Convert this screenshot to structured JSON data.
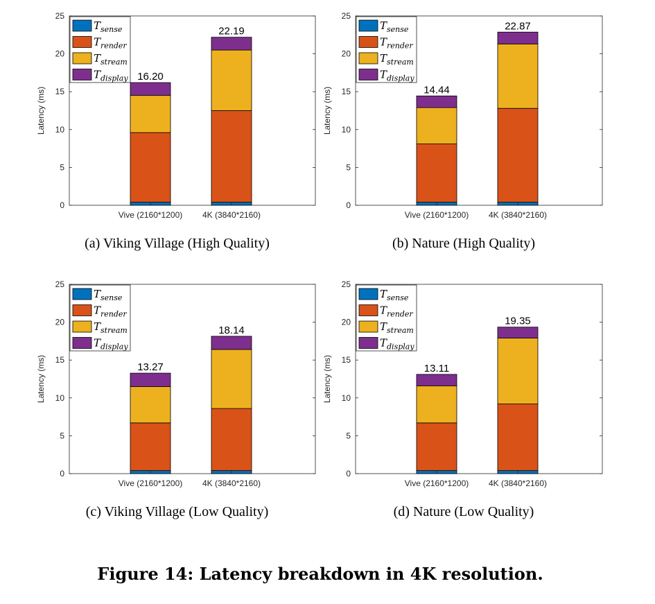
{
  "figure_caption": "Figure 14: Latency breakdown in 4K resolution.",
  "colors": {
    "sense": "#0072bd",
    "render": "#d95319",
    "stream": "#edb120",
    "display": "#7e2f8e"
  },
  "legend": [
    {
      "key": "sense",
      "base": "T",
      "sub": "sense"
    },
    {
      "key": "render",
      "base": "T",
      "sub": "render"
    },
    {
      "key": "stream",
      "base": "T",
      "sub": "stream"
    },
    {
      "key": "display",
      "base": "T",
      "sub": "display"
    }
  ],
  "chart_data": [
    {
      "type": "bar",
      "stacked": true,
      "caption": "(a) Viking Village (High Quality)",
      "ylabel": "Latency (ms)",
      "ylim": [
        0,
        25
      ],
      "yticks": [
        0,
        5,
        10,
        15,
        20,
        25
      ],
      "categories": [
        "Vive (2160*1200)",
        "4K (3840*2160)"
      ],
      "series": [
        {
          "key": "sense",
          "values": [
            0.4,
            0.4
          ]
        },
        {
          "key": "render",
          "values": [
            9.2,
            12.1
          ]
        },
        {
          "key": "stream",
          "values": [
            4.9,
            8.0
          ]
        },
        {
          "key": "display",
          "values": [
            1.7,
            1.69
          ]
        }
      ],
      "totals": [
        "16.20",
        "22.19"
      ],
      "legend_position": "top-left"
    },
    {
      "type": "bar",
      "stacked": true,
      "caption": "(b) Nature (High Quality)",
      "ylabel": "Latency (ms)",
      "ylim": [
        0,
        25
      ],
      "yticks": [
        0,
        5,
        10,
        15,
        20,
        25
      ],
      "categories": [
        "Vive (2160*1200)",
        "4K (3840*2160)"
      ],
      "series": [
        {
          "key": "sense",
          "values": [
            0.4,
            0.4
          ]
        },
        {
          "key": "render",
          "values": [
            7.7,
            12.4
          ]
        },
        {
          "key": "stream",
          "values": [
            4.8,
            8.5
          ]
        },
        {
          "key": "display",
          "values": [
            1.54,
            1.57
          ]
        }
      ],
      "totals": [
        "14.44",
        "22.87"
      ],
      "legend_position": "top-left"
    },
    {
      "type": "bar",
      "stacked": true,
      "caption": "(c) Viking Village (Low Quality)",
      "ylabel": "Latency (ms)",
      "ylim": [
        0,
        25
      ],
      "yticks": [
        0,
        5,
        10,
        15,
        20,
        25
      ],
      "categories": [
        "Vive (2160*1200)",
        "4K (3840*2160)"
      ],
      "series": [
        {
          "key": "sense",
          "values": [
            0.4,
            0.4
          ]
        },
        {
          "key": "render",
          "values": [
            6.3,
            8.2
          ]
        },
        {
          "key": "stream",
          "values": [
            4.8,
            7.8
          ]
        },
        {
          "key": "display",
          "values": [
            1.77,
            1.74
          ]
        }
      ],
      "totals": [
        "13.27",
        "18.14"
      ],
      "legend_position": "top-left"
    },
    {
      "type": "bar",
      "stacked": true,
      "caption": "(d) Nature (Low Quality)",
      "ylabel": "Latency (ms)",
      "ylim": [
        0,
        25
      ],
      "yticks": [
        0,
        5,
        10,
        15,
        20,
        25
      ],
      "categories": [
        "Vive (2160*1200)",
        "4K (3840*2160)"
      ],
      "series": [
        {
          "key": "sense",
          "values": [
            0.4,
            0.4
          ]
        },
        {
          "key": "render",
          "values": [
            6.3,
            8.8
          ]
        },
        {
          "key": "stream",
          "values": [
            4.9,
            8.7
          ]
        },
        {
          "key": "display",
          "values": [
            1.51,
            1.45
          ]
        }
      ],
      "totals": [
        "13.11",
        "19.35"
      ],
      "legend_position": "top-left"
    }
  ]
}
